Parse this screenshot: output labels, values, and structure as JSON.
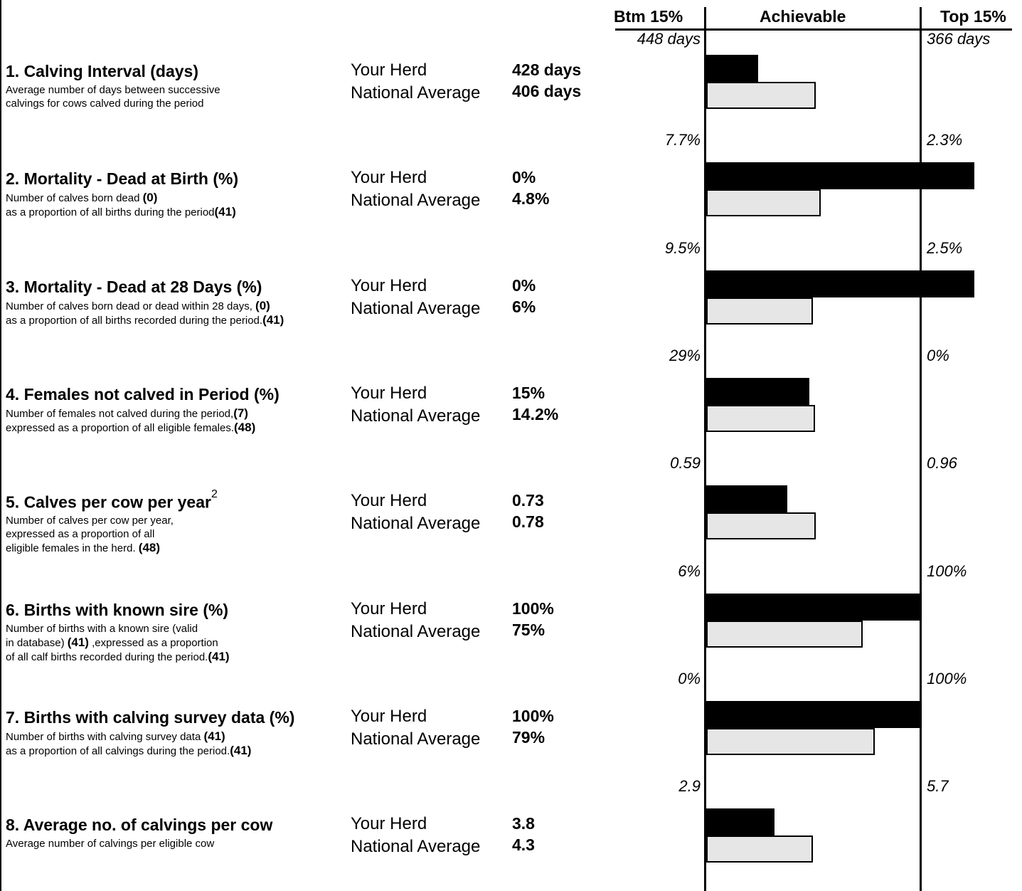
{
  "header": {
    "btm": "Btm 15%",
    "achievable": "Achievable",
    "top": "Top 15%"
  },
  "labels": {
    "your_herd": "Your Herd",
    "national_average": "National Average"
  },
  "colors": {
    "your_herd": "#000000",
    "national_average": "#e6e6e6"
  },
  "metrics": [
    {
      "title": "1. Calving Interval (days)",
      "superscript": "",
      "desc": [
        [
          "Average number of days between successive"
        ],
        [
          "calvings for cows calved during the period"
        ]
      ],
      "herd": "428 days",
      "national": "406 days",
      "btm": "448 days",
      "top": "366 days"
    },
    {
      "title": "2. Mortality - Dead at Birth (%)",
      "superscript": "",
      "desc": [
        [
          "Number of calves born dead ",
          "(0)"
        ],
        [
          "as a proportion of all births during the period",
          "(41)"
        ]
      ],
      "herd": "0%",
      "national": "4.8%",
      "btm": "7.7%",
      "top": "2.3%"
    },
    {
      "title": "3. Mortality - Dead at 28 Days (%)",
      "superscript": "",
      "desc": [
        [
          "Number of calves born dead or dead within 28 days, ",
          "(0)"
        ],
        [
          "as a proportion of all births recorded during the period.",
          "(41)"
        ]
      ],
      "herd": "0%",
      "national": "6%",
      "btm": "9.5%",
      "top": "2.5%"
    },
    {
      "title": "4. Females not calved in Period (%)",
      "superscript": "",
      "desc": [
        [
          "Number of females not calved during the period,",
          "(7)"
        ],
        [
          "expressed as a proportion of all eligible females.",
          "(48)"
        ]
      ],
      "herd": "15%",
      "national": "14.2%",
      "btm": "29%",
      "top": "0%"
    },
    {
      "title": "5. Calves per cow per year",
      "superscript": "2",
      "desc": [
        [
          "Number of calves per cow per year,"
        ],
        [
          "expressed as a proportion of all"
        ],
        [
          "eligible females in the herd. ",
          "(48)"
        ]
      ],
      "herd": "0.73",
      "national": "0.78",
      "btm": "0.59",
      "top": "0.96"
    },
    {
      "title": "6. Births with known sire (%)",
      "superscript": "",
      "desc": [
        [
          "Number of births with a known sire (valid"
        ],
        [
          "in database) ",
          "(41)",
          "  ,expressed as a proportion"
        ],
        [
          "of all calf births recorded during the period.",
          "(41)"
        ]
      ],
      "herd": "100%",
      "national": "75%",
      "btm": "6%",
      "top": "100%"
    },
    {
      "title": "7. Births with calving survey data (%)",
      "superscript": "",
      "desc": [
        [
          "Number of births with calving survey data ",
          "(41)"
        ],
        [
          "as a proportion of all calvings during the period.",
          "(41)"
        ]
      ],
      "herd": "100%",
      "national": "79%",
      "btm": "0%",
      "top": "100%"
    },
    {
      "title": "8. Average no. of calvings per cow",
      "superscript": "",
      "desc": [
        [
          "Average number of calvings per eligible cow"
        ]
      ],
      "herd": "3.8",
      "national": "4.3",
      "btm": "2.9",
      "top": "5.7"
    }
  ],
  "chart_data": {
    "type": "bar",
    "orientation": "horizontal",
    "categories": [
      "1. Calving Interval (days)",
      "2. Mortality - Dead at Birth (%)",
      "3. Mortality - Dead at 28 Days (%)",
      "4. Females not calved in Period (%)",
      "5. Calves per cow per year",
      "6. Births with known sire (%)",
      "7. Births with calving survey data (%)",
      "8. Average no. of calvings per cow"
    ],
    "bottom_15": [
      448,
      7.7,
      9.5,
      29,
      0.59,
      6,
      0,
      2.9
    ],
    "top_15": [
      366,
      2.3,
      2.5,
      0,
      0.96,
      100,
      100,
      5.7
    ],
    "series": [
      {
        "values": [
          428,
          0,
          0,
          15,
          0.73,
          100,
          100,
          3.8
        ]
      },
      {
        "values": [
          406,
          4.8,
          6,
          14.2,
          0.78,
          75,
          79,
          4.3
        ]
      }
    ]
  }
}
